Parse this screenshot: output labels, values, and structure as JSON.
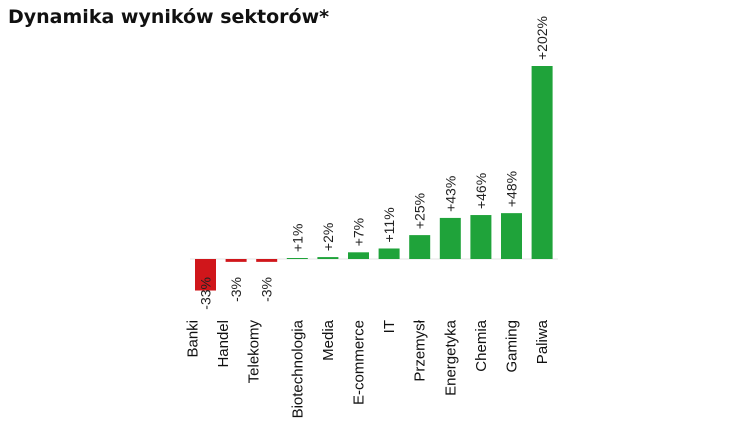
{
  "chart_data": {
    "type": "bar",
    "title": "Dynamika wyników sektorów*",
    "unit": "%",
    "categories": [
      "Banki",
      "Handel",
      "Telekomy",
      "Biotechnologia",
      "Media",
      "E-commerce",
      "IT",
      "Przemysł",
      "Energetyka",
      "Chemia",
      "Gaming",
      "Paliwa"
    ],
    "values": [
      -33,
      -3,
      -3,
      1,
      2,
      7,
      11,
      25,
      43,
      46,
      48,
      202
    ],
    "value_labels": [
      "-33%",
      "-3%",
      "-3%",
      "+1%",
      "+2%",
      "+7%",
      "+11%",
      "+25%",
      "+43%",
      "+46%",
      "+48%",
      "+202%"
    ],
    "colors": {
      "positive": "#1fa33a",
      "negative": "#d0161b"
    },
    "grid": false,
    "legend": "none"
  }
}
